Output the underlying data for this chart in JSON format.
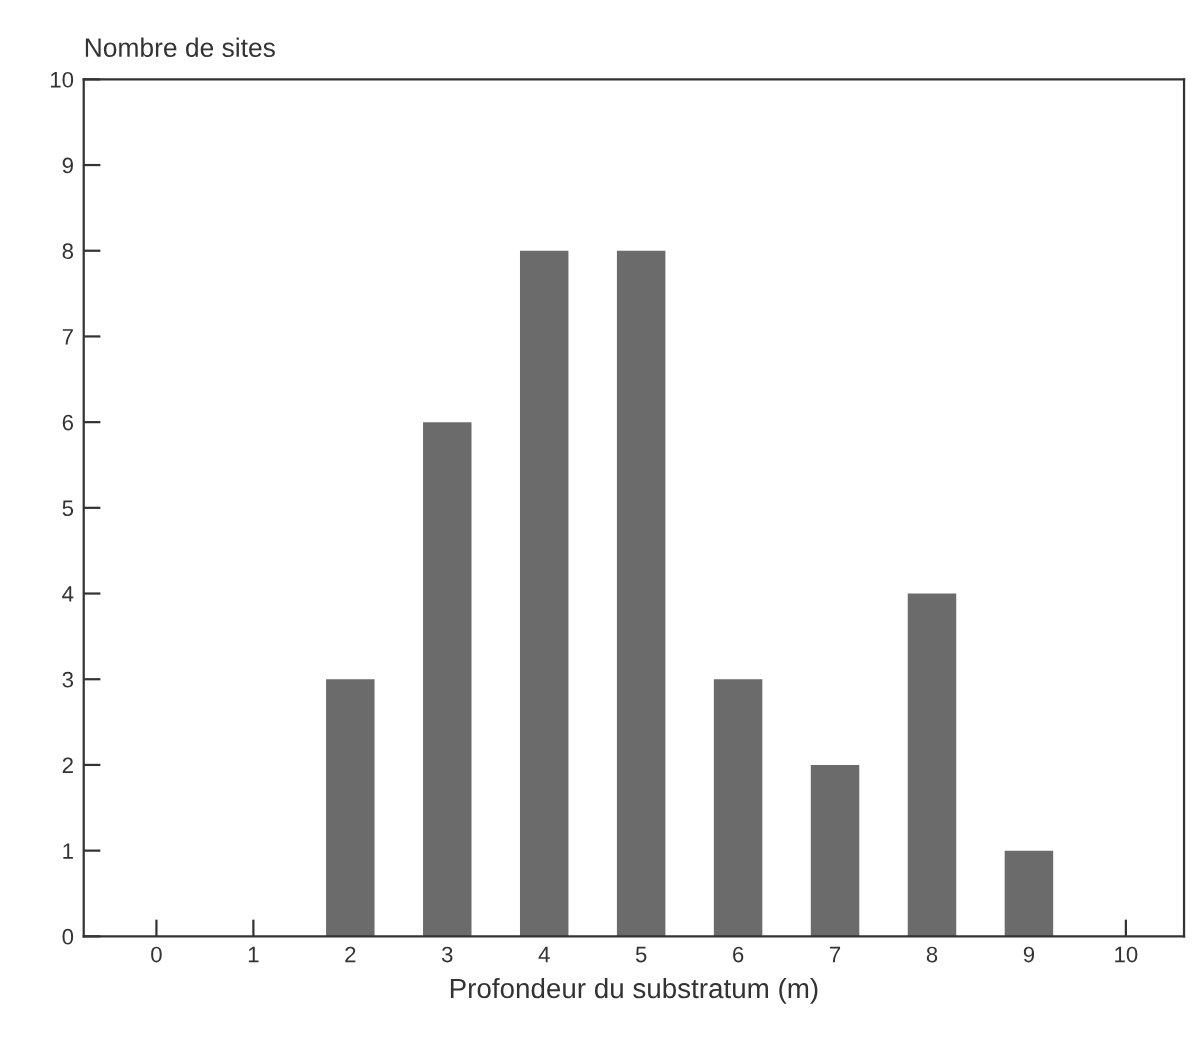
{
  "chart_data": {
    "type": "bar",
    "ylabel": "Nombre de sites",
    "xlabel": "Profondeur du substratum (m)",
    "categories": [
      "0",
      "1",
      "2",
      "3",
      "4",
      "5",
      "6",
      "7",
      "8",
      "9",
      "10"
    ],
    "values": [
      0,
      0,
      3,
      6,
      8,
      8,
      3,
      2,
      4,
      1,
      0
    ],
    "color": "#6b6b6b",
    "ylim": [
      0,
      10
    ],
    "yticks": [
      0,
      1,
      2,
      3,
      4,
      5,
      6,
      7,
      8,
      9,
      10
    ],
    "grid": false
  }
}
